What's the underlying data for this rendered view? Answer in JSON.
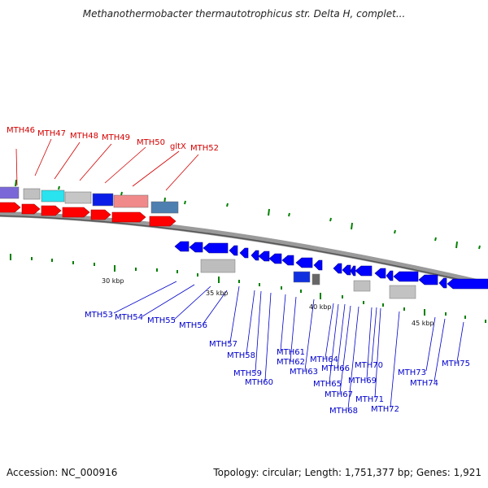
{
  "title": "Methanothermobacter thermautotrophicus str. Delta H, complet...",
  "footer": {
    "accession": "Accession: NC_000916",
    "summary": "Topology: circular; Length: 1,751,377 bp; Genes: 1,921"
  },
  "scale_labels": [
    "30 kbp",
    "35 kbp",
    "40 kbp",
    "45 kbp"
  ],
  "colors": {
    "forward_gene": "#ff0000",
    "reverse_gene": "#0000ff",
    "backbone": "#808080",
    "tick": "#008000",
    "red_label": "#d40000",
    "blue_label": "#0000cc"
  },
  "red_genes": [
    "MTH46",
    "MTH47",
    "MTH48",
    "MTH49",
    "MTH50",
    "gltX",
    "MTH52"
  ],
  "blue_genes": [
    "MTH53",
    "MTH54",
    "MTH55",
    "MTH56",
    "MTH57",
    "MTH58",
    "MTH59",
    "MTH60",
    "MTH61",
    "MTH62",
    "MTH63",
    "MTH64",
    "MTH65",
    "MTH66",
    "MTH67",
    "MTH68",
    "MTH69",
    "MTH70",
    "MTH71",
    "MTH72",
    "MTH73",
    "MTH74",
    "MTH75"
  ]
}
